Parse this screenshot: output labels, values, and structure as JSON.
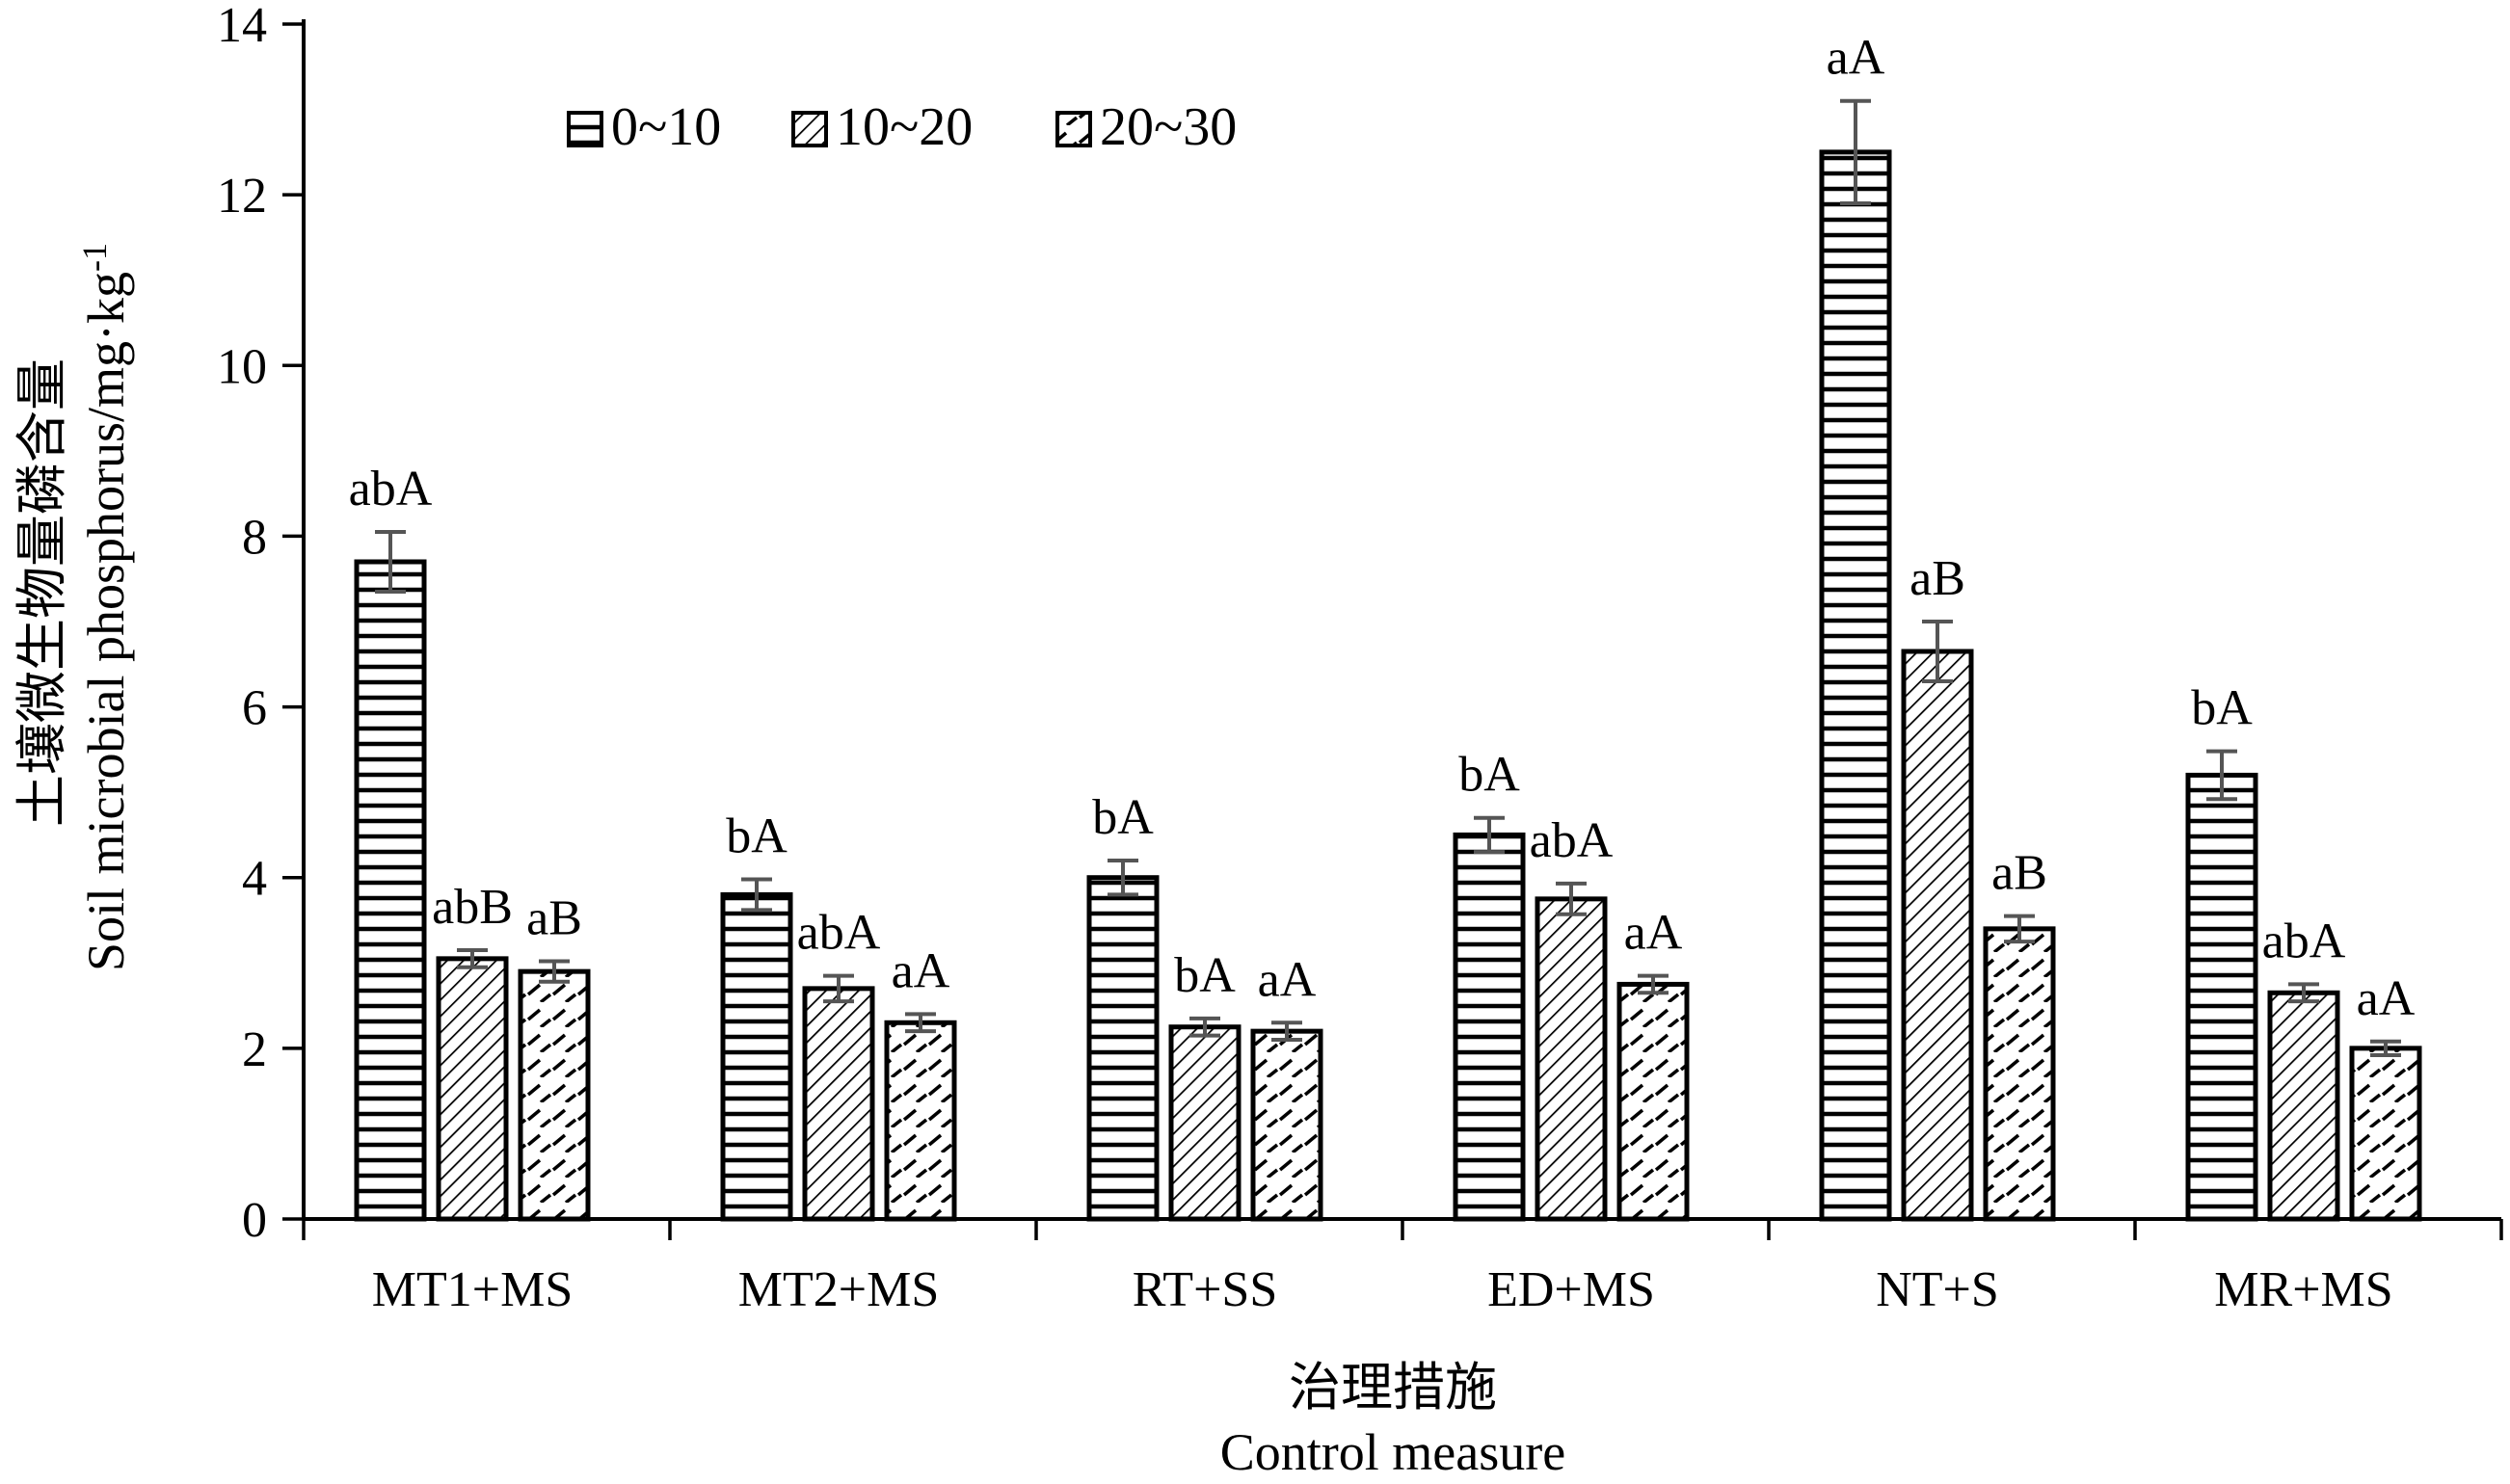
{
  "chart_data": {
    "type": "bar",
    "title": "",
    "xlabel": [
      "治理措施",
      "Control measure"
    ],
    "ylabel": {
      "zh": "土壤微生物量磷含量",
      "en": "Soil microbial phosphorus/mg·kg",
      "en_sup": "-1"
    },
    "ylim": [
      0,
      14
    ],
    "yticks": [
      "0",
      "2",
      "4",
      "6",
      "8",
      "10",
      "12",
      "14"
    ],
    "grid": false,
    "legend_position": "top-left",
    "categories": [
      "MT1+MS",
      "MT2+MS",
      "RT+SS",
      "ED+MS",
      "NT+S",
      "MR+MS"
    ],
    "series": [
      {
        "name": "0~10",
        "pattern": "horizontal-lines",
        "values": [
          7.7,
          3.8,
          4.0,
          4.5,
          12.5,
          5.2
        ],
        "errors": [
          0.35,
          0.18,
          0.2,
          0.2,
          0.6,
          0.28
        ],
        "labels": [
          "abA",
          "bA",
          "bA",
          "bA",
          "aA",
          "bA"
        ]
      },
      {
        "name": "10~20",
        "pattern": "diagonal-hatch",
        "values": [
          3.05,
          2.7,
          2.25,
          3.75,
          6.65,
          2.65
        ],
        "errors": [
          0.1,
          0.15,
          0.1,
          0.18,
          0.35,
          0.1
        ],
        "labels": [
          "abB",
          "abA",
          "bA",
          "abA",
          "aB",
          "abA"
        ]
      },
      {
        "name": "20~30",
        "pattern": "dashed-diagonal",
        "values": [
          2.9,
          2.3,
          2.2,
          2.75,
          3.4,
          2.0
        ],
        "errors": [
          0.12,
          0.1,
          0.1,
          0.1,
          0.15,
          0.08
        ],
        "labels": [
          "aB",
          "aA",
          "aA",
          "aA",
          "aB",
          "aA"
        ]
      }
    ],
    "colors": {
      "bar_fill": "#ffffff",
      "stroke": "#000000",
      "error_bar": "#555555"
    }
  }
}
